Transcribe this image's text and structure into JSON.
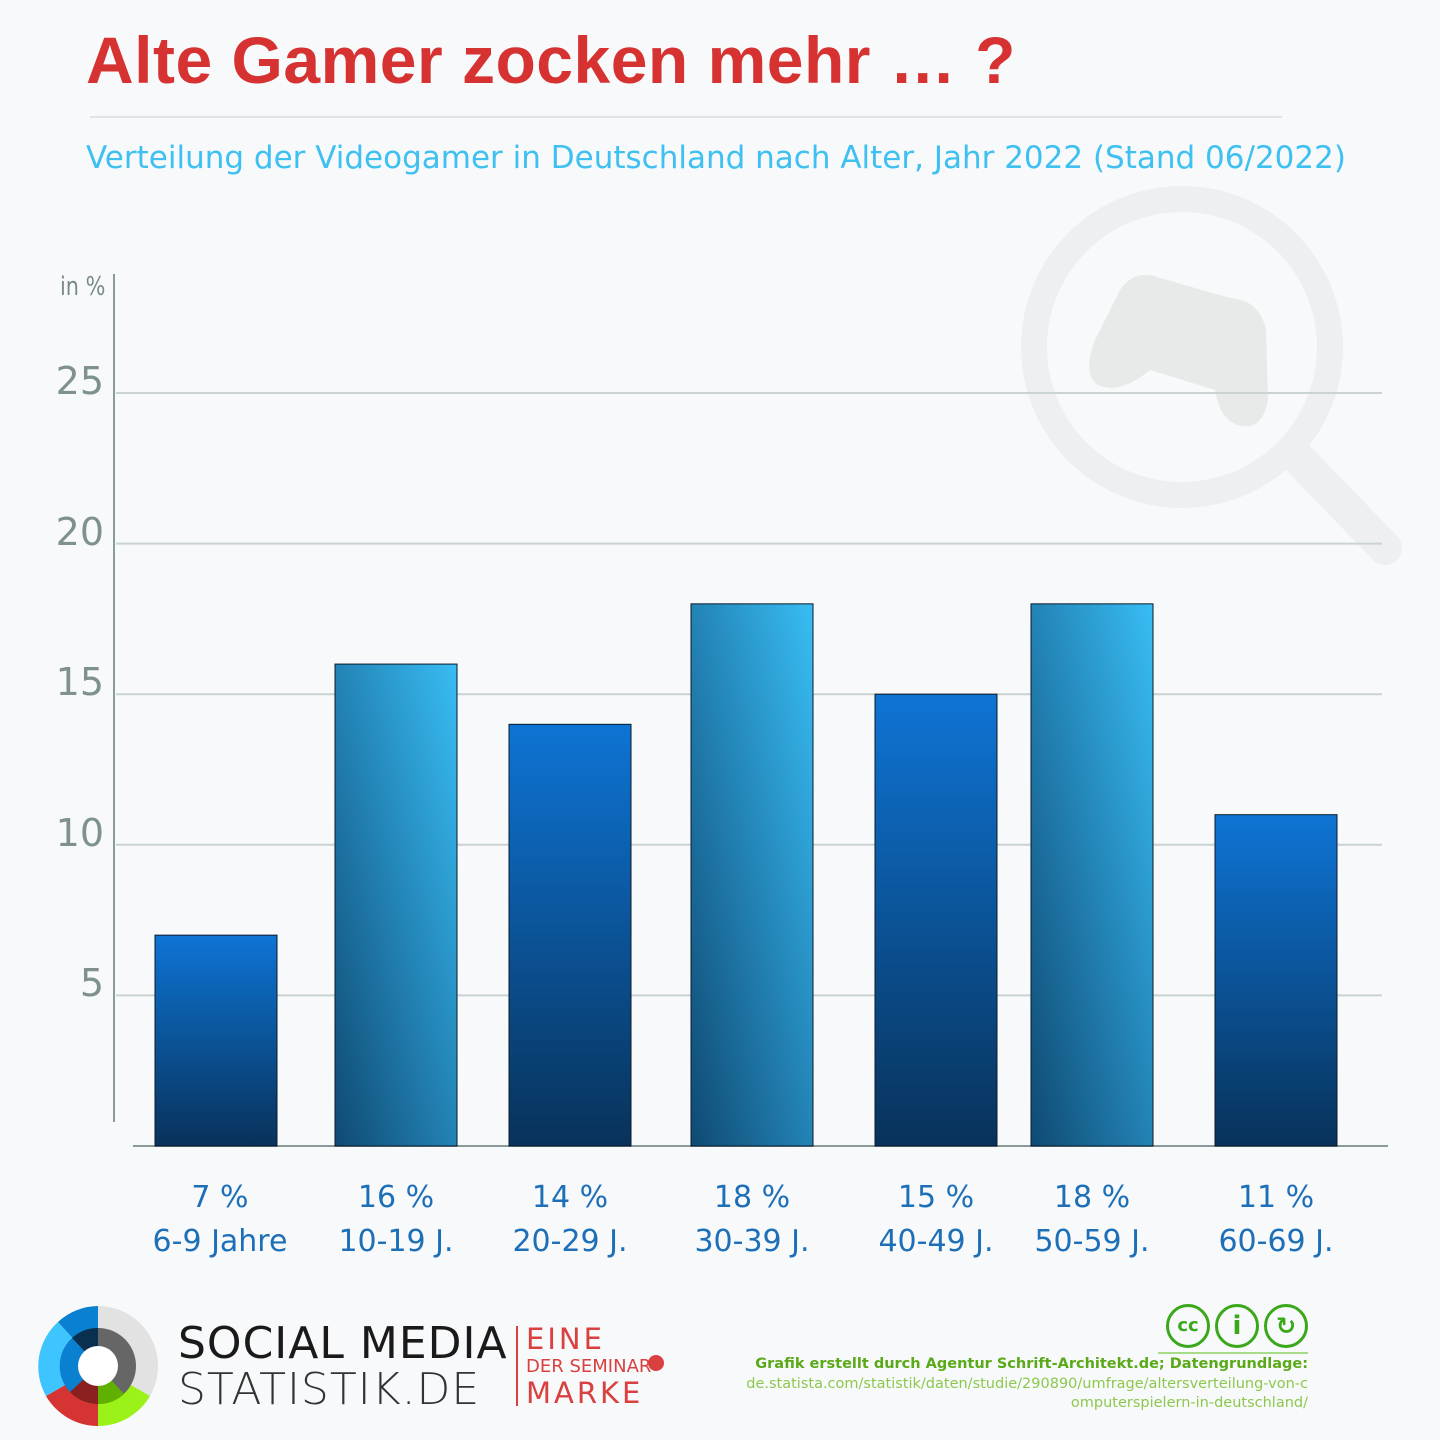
{
  "header": {
    "title": "Alte Gamer zocken mehr … ?",
    "subtitle": "Verteilung der Videogamer in Deutschland nach Alter, Jahr 2022 (Stand 06/2022)"
  },
  "chart_data": {
    "type": "bar",
    "title": "Alte Gamer zocken mehr … ?",
    "subtitle": "Verteilung der Videogamer in Deutschland nach Alter, Jahr 2022 (Stand 06/2022)",
    "ylabel": "in %",
    "ylim": [
      0,
      27
    ],
    "yticks": [
      "5",
      "10",
      "15",
      "20",
      "25"
    ],
    "grid": true,
    "categories": [
      "6-9 Jahre",
      "10-19 J.",
      "20-29 J.",
      "30-39 J.",
      "40-49 J.",
      "50-59 J.",
      "60-69 J."
    ],
    "values": [
      7,
      16,
      14,
      18,
      15,
      18,
      11
    ],
    "value_labels": [
      "7 %",
      "16 %",
      "14 %",
      "18 %",
      "15 %",
      "18 %",
      "11 %"
    ],
    "colors": {
      "dark_bar": "#0e74d4",
      "light_bar": "#38bdf4",
      "label": "#1d6fb8"
    }
  },
  "footer": {
    "logo_line1": "SOCIAL MEDIA",
    "logo_line2": "STATISTIK.DE",
    "seminar_1": "EINE",
    "seminar_2": "DER SEMINAR",
    "seminar_3": "MARKE",
    "license": "CC BY-SA",
    "credit": "Grafik erstellt durch Agentur Schrift-Architekt.de; Datengrundlage:",
    "source_1": "de.statista.com/statistik/daten/studie/290890/umfrage/altersverteilung-von-c",
    "source_2": "omputerspielern-in-deutschland/"
  }
}
